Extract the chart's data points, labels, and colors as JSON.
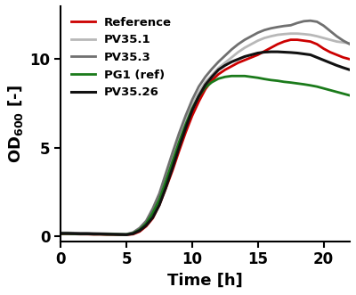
{
  "title": "",
  "xlabel": "Time [h]",
  "ylabel": "OD$_{600}$ [-]",
  "xlim": [
    0,
    22
  ],
  "ylim": [
    -0.3,
    13
  ],
  "xticks": [
    0,
    5,
    10,
    15,
    20
  ],
  "yticks": [
    0,
    5,
    10
  ],
  "series": [
    {
      "label": "Reference",
      "color": "#cc0000",
      "linewidth": 2.0,
      "t": [
        0,
        0.5,
        1,
        1.5,
        2,
        2.5,
        3,
        3.5,
        4,
        4.5,
        5,
        5.5,
        6,
        6.5,
        7,
        7.5,
        8,
        8.5,
        9,
        9.5,
        10,
        10.5,
        11,
        11.5,
        12,
        12.5,
        13,
        13.5,
        14,
        14.5,
        15,
        15.5,
        16,
        16.5,
        17,
        17.5,
        18,
        18.5,
        19,
        19.5,
        20,
        20.5,
        21,
        21.5,
        22
      ],
      "y": [
        0.12,
        0.12,
        0.11,
        0.1,
        0.1,
        0.09,
        0.09,
        0.08,
        0.08,
        0.07,
        0.07,
        0.1,
        0.25,
        0.55,
        1.0,
        1.75,
        2.7,
        3.7,
        4.8,
        5.85,
        6.8,
        7.6,
        8.3,
        8.8,
        9.15,
        9.4,
        9.6,
        9.8,
        9.95,
        10.1,
        10.25,
        10.45,
        10.65,
        10.85,
        11.0,
        11.1,
        11.1,
        11.05,
        11.0,
        10.85,
        10.6,
        10.4,
        10.25,
        10.1,
        10.0
      ]
    },
    {
      "label": "PV35.1",
      "color": "#b8b8b8",
      "linewidth": 2.0,
      "t": [
        0,
        0.5,
        1,
        1.5,
        2,
        2.5,
        3,
        3.5,
        4,
        4.5,
        5,
        5.5,
        6,
        6.5,
        7,
        7.5,
        8,
        8.5,
        9,
        9.5,
        10,
        10.5,
        11,
        11.5,
        12,
        12.5,
        13,
        13.5,
        14,
        14.5,
        15,
        15.5,
        16,
        16.5,
        17,
        17.5,
        18,
        18.5,
        19,
        19.5,
        20,
        20.5,
        21,
        21.5,
        22
      ],
      "y": [
        0.15,
        0.15,
        0.14,
        0.13,
        0.13,
        0.12,
        0.12,
        0.11,
        0.11,
        0.1,
        0.09,
        0.18,
        0.4,
        0.78,
        1.4,
        2.2,
        3.3,
        4.4,
        5.5,
        6.5,
        7.4,
        8.1,
        8.7,
        9.1,
        9.5,
        9.8,
        10.1,
        10.4,
        10.65,
        10.85,
        11.05,
        11.2,
        11.3,
        11.38,
        11.42,
        11.45,
        11.45,
        11.42,
        11.38,
        11.3,
        11.2,
        11.1,
        11.0,
        10.95,
        10.9
      ]
    },
    {
      "label": "PV35.3",
      "color": "#707070",
      "linewidth": 2.0,
      "t": [
        0,
        0.5,
        1,
        1.5,
        2,
        2.5,
        3,
        3.5,
        4,
        4.5,
        5,
        5.5,
        6,
        6.5,
        7,
        7.5,
        8,
        8.5,
        9,
        9.5,
        10,
        10.5,
        11,
        11.5,
        12,
        12.5,
        13,
        13.5,
        14,
        14.5,
        15,
        15.5,
        16,
        16.5,
        17,
        17.5,
        18,
        18.5,
        19,
        19.5,
        20,
        20.5,
        21,
        21.5,
        22
      ],
      "y": [
        0.18,
        0.18,
        0.17,
        0.16,
        0.16,
        0.15,
        0.14,
        0.13,
        0.12,
        0.11,
        0.1,
        0.2,
        0.45,
        0.85,
        1.55,
        2.4,
        3.55,
        4.7,
        5.8,
        6.8,
        7.7,
        8.45,
        9.0,
        9.45,
        9.85,
        10.2,
        10.55,
        10.85,
        11.1,
        11.3,
        11.5,
        11.65,
        11.75,
        11.82,
        11.88,
        11.92,
        12.05,
        12.15,
        12.18,
        12.12,
        11.9,
        11.6,
        11.3,
        11.05,
        10.85
      ]
    },
    {
      "label": "PG1 (ref)",
      "color": "#1a7a1a",
      "linewidth": 2.0,
      "t": [
        0,
        0.5,
        1,
        1.5,
        2,
        2.5,
        3,
        3.5,
        4,
        4.5,
        5,
        5.5,
        6,
        6.5,
        7,
        7.5,
        8,
        8.5,
        9,
        9.5,
        10,
        10.5,
        11,
        11.5,
        12,
        12.5,
        13,
        13.5,
        14,
        14.5,
        15,
        15.5,
        16,
        16.5,
        17,
        17.5,
        18,
        18.5,
        19,
        19.5,
        20,
        20.5,
        21,
        21.5,
        22
      ],
      "y": [
        0.13,
        0.13,
        0.12,
        0.11,
        0.11,
        0.1,
        0.1,
        0.09,
        0.09,
        0.08,
        0.08,
        0.15,
        0.35,
        0.7,
        1.3,
        2.05,
        3.1,
        4.2,
        5.3,
        6.3,
        7.2,
        7.9,
        8.4,
        8.7,
        8.9,
        9.0,
        9.05,
        9.05,
        9.05,
        9.0,
        8.95,
        8.88,
        8.82,
        8.78,
        8.72,
        8.68,
        8.63,
        8.58,
        8.52,
        8.45,
        8.35,
        8.25,
        8.15,
        8.05,
        7.95
      ]
    },
    {
      "label": "PV35.26",
      "color": "#111111",
      "linewidth": 2.2,
      "t": [
        0,
        0.5,
        1,
        1.5,
        2,
        2.5,
        3,
        3.5,
        4,
        4.5,
        5,
        5.5,
        6,
        6.5,
        7,
        7.5,
        8,
        8.5,
        9,
        9.5,
        10,
        10.5,
        11,
        11.5,
        12,
        12.5,
        13,
        13.5,
        14,
        14.5,
        15,
        15.5,
        16,
        16.5,
        17,
        17.5,
        18,
        18.5,
        19,
        19.5,
        20,
        20.5,
        21,
        21.5,
        22
      ],
      "y": [
        0.14,
        0.14,
        0.13,
        0.12,
        0.12,
        0.11,
        0.11,
        0.1,
        0.09,
        0.08,
        0.07,
        0.13,
        0.3,
        0.6,
        1.05,
        1.75,
        2.75,
        3.85,
        5.0,
        6.1,
        7.1,
        7.9,
        8.55,
        9.0,
        9.4,
        9.65,
        9.85,
        10.0,
        10.15,
        10.25,
        10.35,
        10.4,
        10.42,
        10.42,
        10.4,
        10.38,
        10.35,
        10.3,
        10.25,
        10.1,
        9.95,
        9.8,
        9.65,
        9.52,
        9.4
      ]
    }
  ],
  "legend_loc": "upper left",
  "legend_fontsize": 9.5,
  "tick_fontsize": 12,
  "label_fontsize": 13,
  "background_color": "#ffffff",
  "spine_color": "#000000"
}
